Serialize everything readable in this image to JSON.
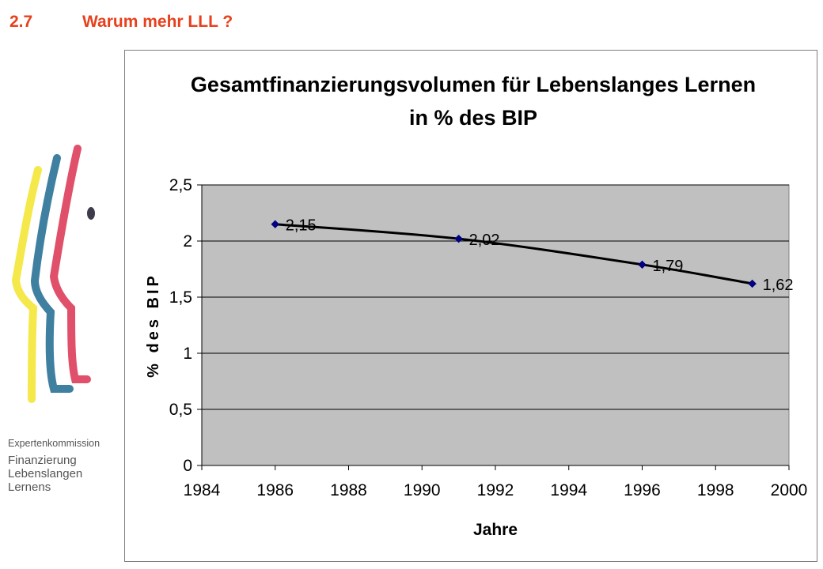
{
  "slide": {
    "section_number": "2.7",
    "section_title": "Warum mehr LLL ?"
  },
  "logo": {
    "line1": "Expertenkommission",
    "line2": "Finanzierung",
    "line3": "Lebenslangen",
    "line4": "Lernens"
  },
  "colors": {
    "heading": "#e8401c",
    "plot_area": "#c0c0c0",
    "line": "#000000",
    "marker": "#000080",
    "logo_yellow": "#f5e84a",
    "logo_blue": "#3f7fa0",
    "logo_red": "#e0506a",
    "logo_dot": "#3c3c4c"
  },
  "chart_data": {
    "type": "line",
    "title_line1": "Gesamtfinanzierungsvolumen für Lebenslanges Lernen",
    "title_line2": "in % des BIP",
    "xlabel": "Jahre",
    "ylabel": "% des BIP",
    "xlim": [
      1984,
      2000
    ],
    "ylim": [
      0,
      2.5
    ],
    "x_ticks": [
      "1984",
      "1986",
      "1988",
      "1990",
      "1992",
      "1994",
      "1996",
      "1998",
      "2000"
    ],
    "y_ticks": [
      "0",
      "0,5",
      "1",
      "1,5",
      "2",
      "2,5"
    ],
    "grid": "horizontal",
    "legend": "none",
    "series": [
      {
        "x": [
          1986,
          1991,
          1996,
          1999
        ],
        "y": [
          2.15,
          2.02,
          1.79,
          1.62
        ],
        "labels": [
          "2,15",
          "2,02",
          "1,79",
          "1,62"
        ]
      }
    ]
  }
}
